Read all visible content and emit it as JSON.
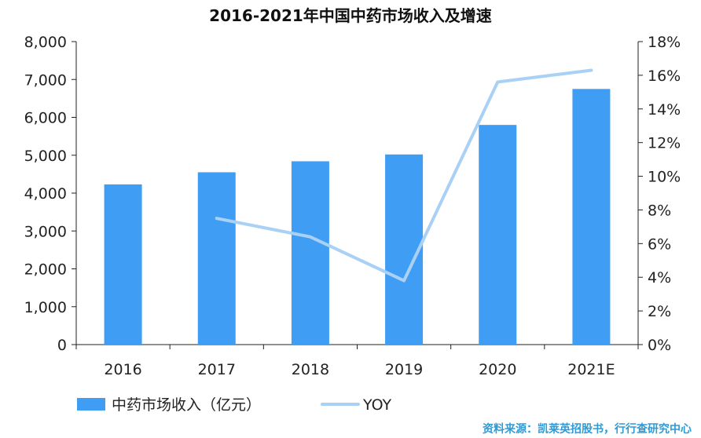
{
  "chart_data": {
    "type": "bar",
    "title": "2016-2021年中国中药市场收入及增速",
    "categories": [
      "2016",
      "2017",
      "2018",
      "2019",
      "2020",
      "2021E"
    ],
    "series": [
      {
        "name": "中药市场收入（亿元）",
        "type": "bar",
        "axis": "left",
        "color": "#3f9df3",
        "values": [
          4230,
          4550,
          4840,
          5020,
          5800,
          6750
        ]
      },
      {
        "name": "YOY",
        "type": "line",
        "axis": "right",
        "color": "#a9d0f5",
        "values": [
          null,
          7.5,
          6.4,
          3.8,
          15.6,
          16.3
        ]
      }
    ],
    "y_left": {
      "ylim": [
        0,
        8000
      ],
      "ticks": [
        0,
        1000,
        2000,
        3000,
        4000,
        5000,
        6000,
        7000,
        8000
      ],
      "tick_labels": [
        "0",
        "1,000",
        "2,000",
        "3,000",
        "4,000",
        "5,000",
        "6,000",
        "7,000",
        "8,000"
      ]
    },
    "y_right": {
      "ylim": [
        0,
        18
      ],
      "ticks": [
        0,
        2,
        4,
        6,
        8,
        10,
        12,
        14,
        16,
        18
      ],
      "tick_labels": [
        "0%",
        "2%",
        "4%",
        "6%",
        "8%",
        "10%",
        "12%",
        "14%",
        "16%",
        "18%"
      ]
    },
    "grid": false,
    "legend_position": "bottom-left"
  },
  "source": "资料来源：凯莱英招股书，行行查研究中心"
}
